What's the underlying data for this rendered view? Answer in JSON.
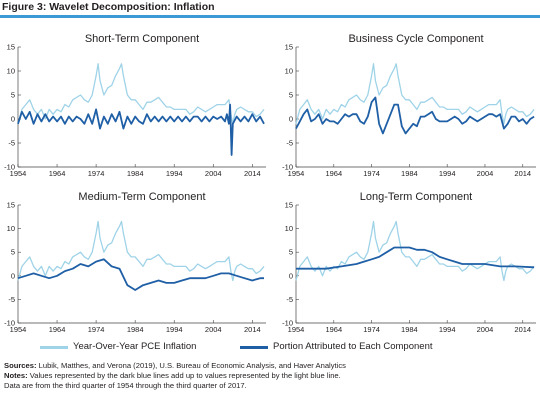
{
  "figure_title": "Figure 3: Wavelet Decomposition: Inflation",
  "legend": {
    "light_label": "Year-Over-Year PCE Inflation",
    "dark_label": "Portion Attributed to Each Component"
  },
  "colors": {
    "light": "#9fd3e8",
    "dark": "#1f5fa6",
    "rule": "#3b9ad6",
    "axis": "#444444"
  },
  "sources": {
    "label": "Sources:",
    "text": "Lubik, Matthes, and Verona (2019), U.S. Bureau of Economic Analysis, and Haver Analytics"
  },
  "notes": {
    "label": "Notes:",
    "line1": "Values represented by the dark blue lines add up to values represented by the light blue line.",
    "line2": "Data are from the third quarter of 1954 through the third quarter of 2017."
  },
  "chart_data": [
    {
      "type": "line",
      "title": "Short-Term Component",
      "xlim": [
        1954,
        2017.5
      ],
      "ylim": [
        -10,
        15
      ],
      "yticks": [
        -10,
        -5,
        0,
        5,
        10,
        15
      ],
      "xticks": [
        1954,
        1964,
        1974,
        1984,
        1994,
        2004,
        2014
      ],
      "series": [
        {
          "role": "light",
          "x": [
            1954,
            1955,
            1956,
            1957,
            1958,
            1959,
            1960,
            1961,
            1962,
            1963,
            1964,
            1965,
            1966,
            1967,
            1968,
            1969,
            1970,
            1971,
            1972,
            1973,
            1974,
            1974.5,
            1975,
            1976,
            1977,
            1978,
            1979,
            1980,
            1980.5,
            1981,
            1982,
            1983,
            1984,
            1985,
            1986,
            1987,
            1988,
            1989,
            1990,
            1991,
            1992,
            1993,
            1994,
            1995,
            1996,
            1997,
            1998,
            1999,
            2000,
            2001,
            2002,
            2003,
            2004,
            2005,
            2006,
            2007,
            2008,
            2008.5,
            2009,
            2009.5,
            2010,
            2011,
            2012,
            2013,
            2014,
            2015,
            2016,
            2017
          ],
          "y": [
            -1,
            2,
            3,
            4,
            2,
            1,
            2,
            0,
            2,
            1,
            2,
            1.5,
            3,
            2.5,
            4,
            4.5,
            5,
            4,
            3.5,
            5,
            9,
            11.5,
            8,
            5,
            6.5,
            7,
            9,
            10.5,
            11.5,
            9,
            5,
            4,
            4,
            3,
            2,
            3.5,
            3.5,
            4,
            4.5,
            3.5,
            2.5,
            2.5,
            2,
            2,
            2,
            2,
            1,
            1.5,
            2.5,
            2,
            1.5,
            2,
            2.5,
            3,
            3,
            3,
            4,
            1,
            -1,
            1,
            2,
            2.5,
            2,
            1.5,
            1.5,
            0.5,
            1,
            2
          ]
        },
        {
          "role": "dark",
          "x": [
            1954,
            1955,
            1956,
            1957,
            1958,
            1959,
            1960,
            1961,
            1962,
            1963,
            1964,
            1965,
            1966,
            1967,
            1968,
            1969,
            1970,
            1971,
            1972,
            1973,
            1974,
            1975,
            1976,
            1977,
            1978,
            1979,
            1980,
            1981,
            1982,
            1983,
            1984,
            1985,
            1986,
            1987,
            1988,
            1989,
            1990,
            1991,
            1992,
            1993,
            1994,
            1995,
            1996,
            1997,
            1998,
            1999,
            2000,
            2001,
            2002,
            2003,
            2004,
            2005,
            2006,
            2007,
            2007.5,
            2008,
            2008.3,
            2008.7,
            2009,
            2010,
            2011,
            2012,
            2013,
            2014,
            2015,
            2016,
            2017
          ],
          "y": [
            -1,
            1.5,
            0,
            1.5,
            -1,
            1,
            -0.5,
            1,
            -0.5,
            0.5,
            -0.5,
            0.5,
            -1,
            0.5,
            -0.5,
            0.5,
            0,
            -1,
            1,
            -1,
            2,
            -2,
            0.5,
            -1,
            1,
            -0.5,
            1.5,
            -2,
            0.5,
            -1,
            0.5,
            -0.5,
            -1,
            1,
            -0.5,
            0.5,
            -0.5,
            0.5,
            -0.5,
            0.5,
            -0.5,
            0.5,
            -0.5,
            0.5,
            -0.5,
            0.5,
            0.5,
            -0.5,
            0.5,
            -0.5,
            0.5,
            0,
            0.5,
            -0.5,
            1,
            -1,
            3,
            -7.5,
            -1,
            0.5,
            -0.5,
            0.5,
            -0.5,
            1,
            -0.5,
            0.5,
            -1
          ]
        }
      ]
    },
    {
      "type": "line",
      "title": "Business Cycle Component",
      "xlim": [
        1954,
        2017.5
      ],
      "ylim": [
        -10,
        15
      ],
      "yticks": [
        -10,
        -5,
        0,
        5,
        10,
        15
      ],
      "xticks": [
        1954,
        1964,
        1974,
        1984,
        1994,
        2004,
        2014
      ],
      "series": [
        {
          "role": "light",
          "x": [
            1954,
            1955,
            1956,
            1957,
            1958,
            1959,
            1960,
            1961,
            1962,
            1963,
            1964,
            1965,
            1966,
            1967,
            1968,
            1969,
            1970,
            1971,
            1972,
            1973,
            1974,
            1974.5,
            1975,
            1976,
            1977,
            1978,
            1979,
            1980,
            1980.5,
            1981,
            1982,
            1983,
            1984,
            1985,
            1986,
            1987,
            1988,
            1989,
            1990,
            1991,
            1992,
            1993,
            1994,
            1995,
            1996,
            1997,
            1998,
            1999,
            2000,
            2001,
            2002,
            2003,
            2004,
            2005,
            2006,
            2007,
            2008,
            2008.5,
            2009,
            2009.5,
            2010,
            2011,
            2012,
            2013,
            2014,
            2015,
            2016,
            2017
          ],
          "y": [
            -1,
            2,
            3,
            4,
            2,
            1,
            2,
            0,
            2,
            1,
            2,
            1.5,
            3,
            2.5,
            4,
            4.5,
            5,
            4,
            3.5,
            5,
            9,
            11.5,
            8,
            5,
            6.5,
            7,
            9,
            10.5,
            11.5,
            9,
            5,
            4,
            4,
            3,
            2,
            3.5,
            3.5,
            4,
            4.5,
            3.5,
            2.5,
            2.5,
            2,
            2,
            2,
            2,
            1,
            1.5,
            2.5,
            2,
            1.5,
            2,
            2.5,
            3,
            3,
            3,
            4,
            1,
            -1,
            1,
            2,
            2.5,
            2,
            1.5,
            1.5,
            0.5,
            1,
            2
          ]
        },
        {
          "role": "dark",
          "x": [
            1954,
            1955,
            1956,
            1957,
            1958,
            1959,
            1960,
            1961,
            1962,
            1963,
            1964,
            1965,
            1966,
            1967,
            1968,
            1969,
            1970,
            1971,
            1972,
            1973,
            1974,
            1975,
            1976,
            1977,
            1978,
            1979,
            1980,
            1981,
            1982,
            1983,
            1984,
            1985,
            1986,
            1987,
            1988,
            1989,
            1990,
            1991,
            1992,
            1993,
            1994,
            1995,
            1996,
            1997,
            1998,
            1999,
            2000,
            2001,
            2002,
            2003,
            2004,
            2005,
            2006,
            2007,
            2008,
            2009,
            2010,
            2011,
            2012,
            2013,
            2014,
            2015,
            2016,
            2017
          ],
          "y": [
            -2,
            -0.5,
            1,
            2,
            -0.5,
            0,
            1,
            -1,
            0,
            -0.5,
            -0.5,
            -1,
            0,
            1,
            0.5,
            1,
            1,
            -0.5,
            -1,
            0.5,
            3.5,
            4.5,
            -1,
            -3,
            -1,
            1,
            3,
            3,
            -1.5,
            -3,
            -2,
            -1,
            -1.5,
            0.5,
            0.5,
            1,
            1.5,
            0,
            -0.5,
            -0.5,
            -0.5,
            0,
            0.5,
            0,
            -1,
            -0.5,
            0.5,
            0,
            -0.5,
            0,
            0.5,
            1,
            1,
            0.5,
            1,
            -2,
            -1,
            0.5,
            0.5,
            -0.5,
            0,
            -1,
            0,
            0.5
          ]
        }
      ]
    },
    {
      "type": "line",
      "title": "Medium-Term Component",
      "xlim": [
        1954,
        2017.5
      ],
      "ylim": [
        -10,
        15
      ],
      "yticks": [
        -10,
        -5,
        0,
        5,
        10,
        15
      ],
      "xticks": [
        1954,
        1964,
        1974,
        1984,
        1994,
        2004,
        2014
      ],
      "series": [
        {
          "role": "light",
          "x": [
            1954,
            1955,
            1956,
            1957,
            1958,
            1959,
            1960,
            1961,
            1962,
            1963,
            1964,
            1965,
            1966,
            1967,
            1968,
            1969,
            1970,
            1971,
            1972,
            1973,
            1974,
            1974.5,
            1975,
            1976,
            1977,
            1978,
            1979,
            1980,
            1980.5,
            1981,
            1982,
            1983,
            1984,
            1985,
            1986,
            1987,
            1988,
            1989,
            1990,
            1991,
            1992,
            1993,
            1994,
            1995,
            1996,
            1997,
            1998,
            1999,
            2000,
            2001,
            2002,
            2003,
            2004,
            2005,
            2006,
            2007,
            2008,
            2008.5,
            2009,
            2009.5,
            2010,
            2011,
            2012,
            2013,
            2014,
            2015,
            2016,
            2017
          ],
          "y": [
            -1,
            2,
            3,
            4,
            2,
            1,
            2,
            0,
            2,
            1,
            2,
            1.5,
            3,
            2.5,
            4,
            4.5,
            5,
            4,
            3.5,
            5,
            9,
            11.5,
            8,
            5,
            6.5,
            7,
            9,
            10.5,
            11.5,
            9,
            5,
            4,
            4,
            3,
            2,
            3.5,
            3.5,
            4,
            4.5,
            3.5,
            2.5,
            2.5,
            2,
            2,
            2,
            2,
            1,
            1.5,
            2.5,
            2,
            1.5,
            2,
            2.5,
            3,
            3,
            3,
            4,
            1,
            -1,
            1,
            2,
            2.5,
            2,
            1.5,
            1.5,
            0.5,
            1,
            2
          ]
        },
        {
          "role": "dark",
          "x": [
            1954,
            1956,
            1958,
            1960,
            1962,
            1964,
            1966,
            1968,
            1970,
            1972,
            1974,
            1976,
            1978,
            1980,
            1982,
            1984,
            1986,
            1988,
            1990,
            1992,
            1994,
            1996,
            1998,
            2000,
            2002,
            2004,
            2006,
            2008,
            2010,
            2012,
            2014,
            2016,
            2017
          ],
          "y": [
            -0.5,
            0,
            0.5,
            0,
            -0.5,
            0,
            1,
            1.5,
            2.5,
            2,
            3,
            3.5,
            2,
            1.5,
            -2,
            -3,
            -2,
            -1.5,
            -1,
            -1.5,
            -1.5,
            -1,
            -0.5,
            -0.5,
            -0.5,
            0,
            0.5,
            0.5,
            0,
            -0.5,
            -1,
            -0.5,
            -0.5
          ]
        }
      ]
    },
    {
      "type": "line",
      "title": "Long-Term Component",
      "xlim": [
        1954,
        2017.5
      ],
      "ylim": [
        -10,
        15
      ],
      "yticks": [
        -10,
        -5,
        0,
        5,
        10,
        15
      ],
      "xticks": [
        1954,
        1964,
        1974,
        1984,
        1994,
        2004,
        2014
      ],
      "series": [
        {
          "role": "light",
          "x": [
            1954,
            1955,
            1956,
            1957,
            1958,
            1959,
            1960,
            1961,
            1962,
            1963,
            1964,
            1965,
            1966,
            1967,
            1968,
            1969,
            1970,
            1971,
            1972,
            1973,
            1974,
            1974.5,
            1975,
            1976,
            1977,
            1978,
            1979,
            1980,
            1980.5,
            1981,
            1982,
            1983,
            1984,
            1985,
            1986,
            1987,
            1988,
            1989,
            1990,
            1991,
            1992,
            1993,
            1994,
            1995,
            1996,
            1997,
            1998,
            1999,
            2000,
            2001,
            2002,
            2003,
            2004,
            2005,
            2006,
            2007,
            2008,
            2008.5,
            2009,
            2009.5,
            2010,
            2011,
            2012,
            2013,
            2014,
            2015,
            2016,
            2017
          ],
          "y": [
            -1,
            2,
            3,
            4,
            2,
            1,
            2,
            0,
            2,
            1,
            2,
            1.5,
            3,
            2.5,
            4,
            4.5,
            5,
            4,
            3.5,
            5,
            9,
            11.5,
            8,
            5,
            6.5,
            7,
            9,
            10.5,
            11.5,
            9,
            5,
            4,
            4,
            3,
            2,
            3.5,
            3.5,
            4,
            4.5,
            3.5,
            2.5,
            2.5,
            2,
            2,
            2,
            2,
            1,
            1.5,
            2.5,
            2,
            1.5,
            2,
            2.5,
            3,
            3,
            3,
            4,
            1,
            -1,
            1,
            2,
            2.5,
            2,
            1.5,
            1.5,
            0.5,
            1,
            2
          ]
        },
        {
          "role": "dark",
          "x": [
            1954,
            1958,
            1962,
            1966,
            1970,
            1972,
            1974,
            1976,
            1978,
            1980,
            1982,
            1984,
            1986,
            1988,
            1990,
            1992,
            1994,
            1996,
            1998,
            2000,
            2004,
            2008,
            2012,
            2017
          ],
          "y": [
            1.5,
            1.5,
            1.5,
            2,
            2.5,
            3,
            3.5,
            4,
            5,
            6,
            6,
            6,
            5.5,
            5.5,
            5,
            4,
            3.5,
            3,
            2.5,
            2.5,
            2.5,
            2,
            2,
            1.8
          ]
        }
      ]
    }
  ]
}
